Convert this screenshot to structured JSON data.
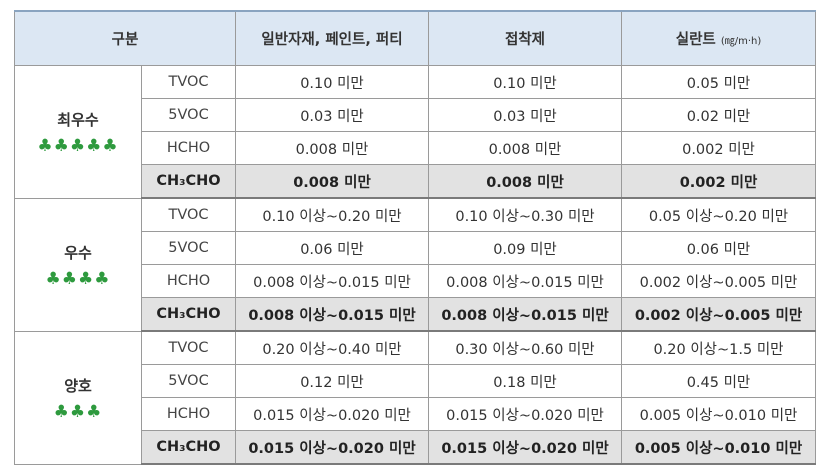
{
  "table": {
    "headers": {
      "category": "구분",
      "col1": "일반자재, 페인트, 퍼티",
      "col2": "접착제",
      "col3": "실란트",
      "col3_unit": "(㎎/m·h)"
    },
    "groups": [
      {
        "label": "최우수",
        "clovers": "♣♣♣♣♣",
        "rows": [
          {
            "sub": "TVOC",
            "v1": "0.10 미만",
            "v2": "0.10 미만",
            "v3": "0.05 미만"
          },
          {
            "sub": "5VOC",
            "v1": "0.03 미만",
            "v2": "0.03 미만",
            "v3": "0.02 미만"
          },
          {
            "sub": "HCHO",
            "v1": "0.008 미만",
            "v2": "0.008 미만",
            "v3": "0.002 미만"
          },
          {
            "sub": "CH₃CHO",
            "v1": "0.008 미만",
            "v2": "0.008 미만",
            "v3": "0.002 미만"
          }
        ]
      },
      {
        "label": "우수",
        "clovers": "♣♣♣♣",
        "rows": [
          {
            "sub": "TVOC",
            "v1": "0.10 이상~0.20 미만",
            "v2": "0.10 이상~0.30 미만",
            "v3": "0.05 이상~0.20 미만"
          },
          {
            "sub": "5VOC",
            "v1": "0.06 미만",
            "v2": "0.09 미만",
            "v3": "0.06 미만"
          },
          {
            "sub": "HCHO",
            "v1": "0.008 이상~0.015 미만",
            "v2": "0.008 이상~0.015 미만",
            "v3": "0.002 이상~0.005 미만"
          },
          {
            "sub": "CH₃CHO",
            "v1": "0.008 이상~0.015 미만",
            "v2": "0.008 이상~0.015 미만",
            "v3": "0.002 이상~0.005 미만"
          }
        ]
      },
      {
        "label": "양호",
        "clovers": "♣♣♣",
        "rows": [
          {
            "sub": "TVOC",
            "v1": "0.20 이상~0.40 미만",
            "v2": "0.30 이상~0.60 미만",
            "v3": "0.20 이상~1.5 미만"
          },
          {
            "sub": "5VOC",
            "v1": "0.12 미만",
            "v2": "0.18 미만",
            "v3": "0.45 미만"
          },
          {
            "sub": "HCHO",
            "v1": "0.015 이상~0.020 미만",
            "v2": "0.015 이상~0.020 미만",
            "v3": "0.005 이상~0.010 미만"
          },
          {
            "sub": "CH₃CHO",
            "v1": "0.015 이상~0.020 미만",
            "v2": "0.015 이상~0.020 미만",
            "v3": "0.005 이상~0.010 미만"
          }
        ]
      }
    ]
  },
  "colors": {
    "header_bg": "#dce7f3",
    "highlight_row_bg": "#e2e2e2",
    "clover_green": "#2e9a3e"
  }
}
